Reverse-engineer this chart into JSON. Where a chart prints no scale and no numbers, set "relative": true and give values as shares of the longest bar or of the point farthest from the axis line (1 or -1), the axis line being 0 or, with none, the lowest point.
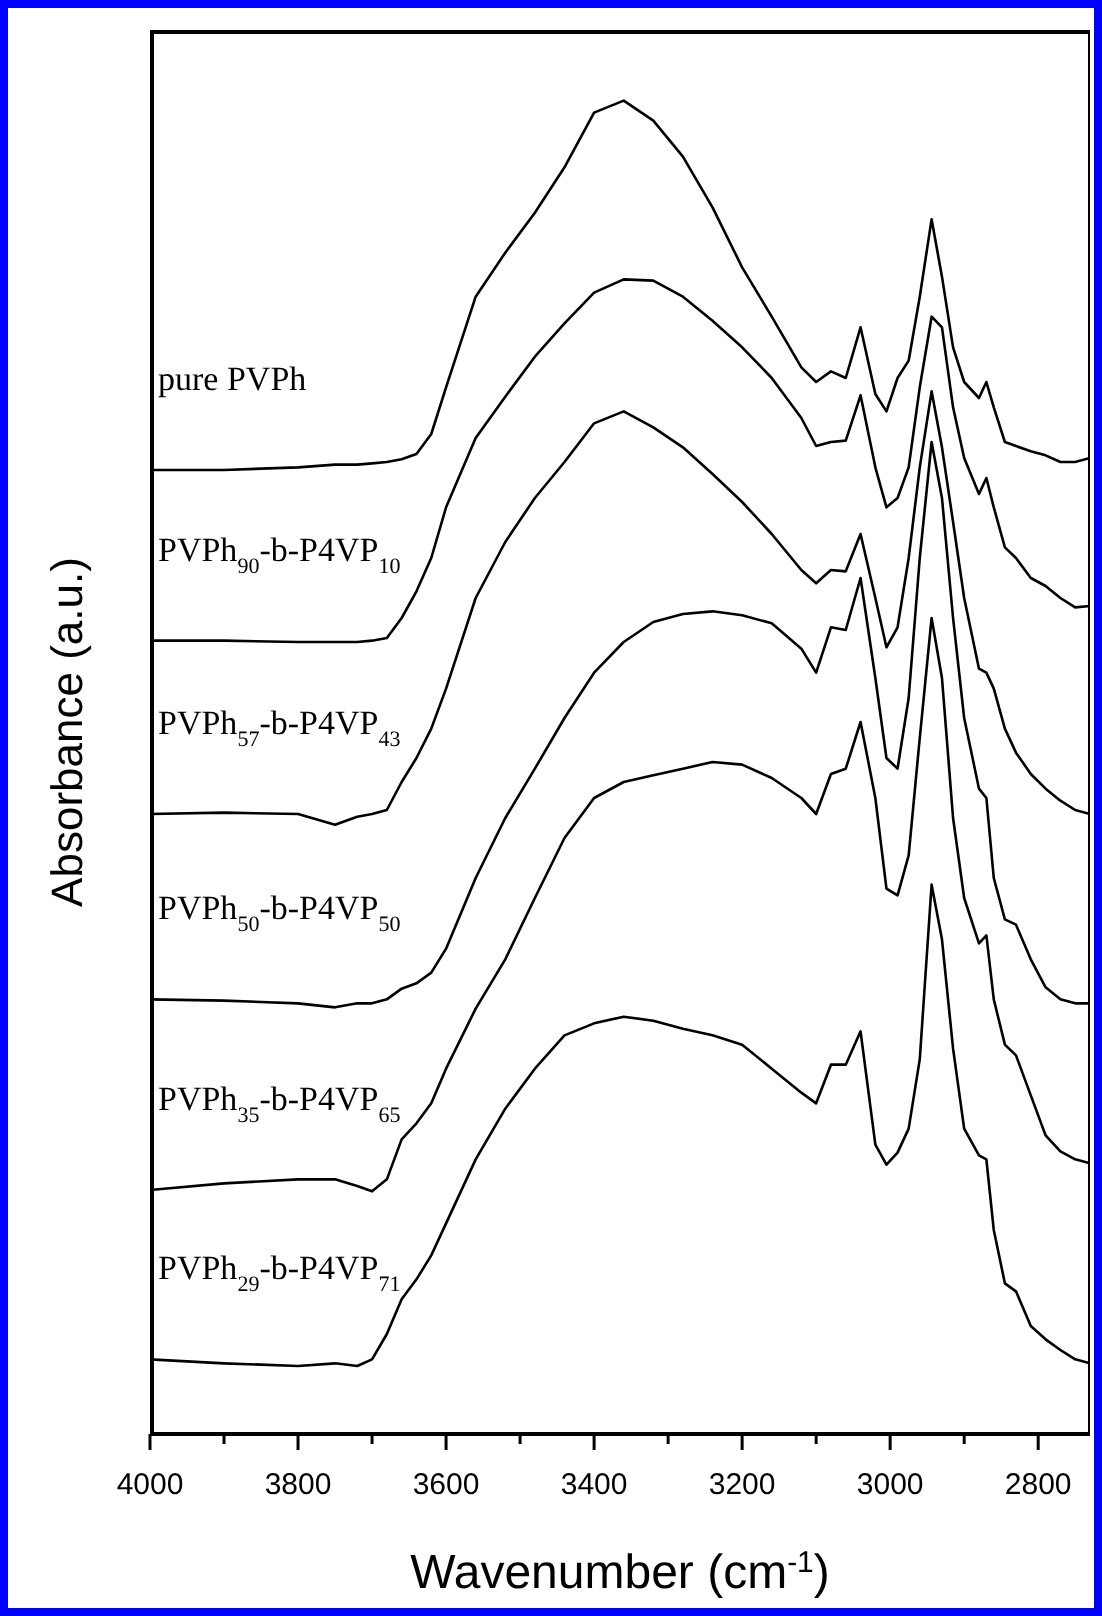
{
  "chart_data": {
    "type": "line",
    "relative": true,
    "xlabel": "Wavenumber (cm$^{-1}$)",
    "ylabel": "Absorbance (a.u.)",
    "x": [
      4000,
      3900,
      3800,
      3750,
      3720,
      3700,
      3680,
      3660,
      3640,
      3620,
      3600,
      3560,
      3520,
      3480,
      3440,
      3400,
      3360,
      3320,
      3280,
      3240,
      3200,
      3160,
      3120,
      3100,
      3080,
      3060,
      3040,
      3020,
      3005,
      2990,
      2975,
      2960,
      2944,
      2930,
      2915,
      2900,
      2880,
      2870,
      2860,
      2845,
      2830,
      2810,
      2790,
      2770,
      2750,
      2730
    ],
    "xlim": [
      4000,
      2730
    ],
    "xticks": [
      4000,
      {
        "value": 3900,
        "label": null
      },
      3800,
      {
        "value": 3700,
        "label": null
      },
      3600,
      {
        "value": 3500,
        "label": null
      },
      3400,
      {
        "value": 3300,
        "label": null
      },
      3200,
      {
        "value": 3100,
        "label": null
      },
      3000,
      {
        "value": 2900,
        "label": null
      },
      2800
    ],
    "legend": false,
    "grid": false,
    "marker": "none",
    "line_style": "solid",
    "series": [
      {
        "name": "pure PVPh",
        "color": "#000000",
        "values": [
          0.723,
          0.723,
          0.725,
          0.727,
          0.727,
          0.728,
          0.729,
          0.731,
          0.735,
          0.75,
          0.785,
          0.853,
          0.886,
          0.916,
          0.95,
          0.991,
          1.0,
          0.985,
          0.958,
          0.92,
          0.875,
          0.838,
          0.8,
          0.789,
          0.797,
          0.792,
          0.83,
          0.78,
          0.767,
          0.792,
          0.805,
          0.853,
          0.911,
          0.868,
          0.815,
          0.789,
          0.777,
          0.789,
          0.77,
          0.744,
          0.741,
          0.737,
          0.734,
          0.729,
          0.729,
          0.732
        ]
      },
      {
        "name": "PVPh$_{90}$-b-P4VP$_{10}$",
        "color": "#000000",
        "values": [
          0.595,
          0.595,
          0.594,
          0.594,
          0.594,
          0.595,
          0.597,
          0.612,
          0.632,
          0.657,
          0.695,
          0.747,
          0.778,
          0.808,
          0.833,
          0.856,
          0.866,
          0.865,
          0.853,
          0.835,
          0.815,
          0.792,
          0.762,
          0.741,
          0.744,
          0.745,
          0.779,
          0.725,
          0.695,
          0.702,
          0.725,
          0.785,
          0.838,
          0.83,
          0.77,
          0.732,
          0.705,
          0.717,
          0.695,
          0.665,
          0.657,
          0.642,
          0.636,
          0.627,
          0.62,
          0.621
        ]
      },
      {
        "name": "PVPh$_{57}$-b-P4VP$_{43}$",
        "color": "#000000",
        "values": [
          0.465,
          0.466,
          0.465,
          0.457,
          0.463,
          0.465,
          0.468,
          0.489,
          0.507,
          0.529,
          0.559,
          0.627,
          0.669,
          0.702,
          0.729,
          0.758,
          0.767,
          0.755,
          0.74,
          0.72,
          0.699,
          0.675,
          0.648,
          0.638,
          0.648,
          0.647,
          0.675,
          0.627,
          0.59,
          0.605,
          0.657,
          0.725,
          0.782,
          0.74,
          0.684,
          0.627,
          0.574,
          0.571,
          0.559,
          0.529,
          0.511,
          0.495,
          0.484,
          0.475,
          0.468,
          0.465
        ]
      },
      {
        "name": "PVPh$_{50}$-b-P4VP$_{50}$",
        "color": "#000000",
        "values": [
          0.326,
          0.325,
          0.323,
          0.32,
          0.323,
          0.323,
          0.326,
          0.334,
          0.338,
          0.346,
          0.364,
          0.417,
          0.462,
          0.499,
          0.537,
          0.571,
          0.594,
          0.609,
          0.615,
          0.617,
          0.614,
          0.608,
          0.589,
          0.571,
          0.605,
          0.603,
          0.642,
          0.567,
          0.507,
          0.499,
          0.552,
          0.657,
          0.744,
          0.702,
          0.612,
          0.537,
          0.484,
          0.477,
          0.417,
          0.386,
          0.382,
          0.356,
          0.335,
          0.326,
          0.323,
          0.323
        ]
      },
      {
        "name": "PVPh$_{35}$-b-P4VP$_{65}$",
        "color": "#000000",
        "values": [
          0.183,
          0.188,
          0.191,
          0.191,
          0.186,
          0.182,
          0.191,
          0.221,
          0.233,
          0.248,
          0.274,
          0.319,
          0.356,
          0.402,
          0.447,
          0.477,
          0.489,
          0.494,
          0.499,
          0.504,
          0.502,
          0.492,
          0.477,
          0.465,
          0.495,
          0.499,
          0.534,
          0.477,
          0.409,
          0.404,
          0.434,
          0.522,
          0.612,
          0.567,
          0.462,
          0.402,
          0.368,
          0.374,
          0.326,
          0.292,
          0.284,
          0.254,
          0.224,
          0.212,
          0.206,
          0.203
        ]
      },
      {
        "name": "PVPh$_{29}$-b-P4VP$_{71}$",
        "color": "#000000",
        "values": [
          0.056,
          0.053,
          0.051,
          0.053,
          0.051,
          0.056,
          0.075,
          0.101,
          0.116,
          0.134,
          0.158,
          0.206,
          0.244,
          0.274,
          0.299,
          0.308,
          0.313,
          0.31,
          0.304,
          0.299,
          0.292,
          0.274,
          0.256,
          0.248,
          0.277,
          0.277,
          0.302,
          0.217,
          0.202,
          0.211,
          0.229,
          0.281,
          0.412,
          0.371,
          0.289,
          0.229,
          0.209,
          0.206,
          0.153,
          0.113,
          0.107,
          0.081,
          0.071,
          0.063,
          0.056,
          0.053
        ]
      }
    ]
  }
}
